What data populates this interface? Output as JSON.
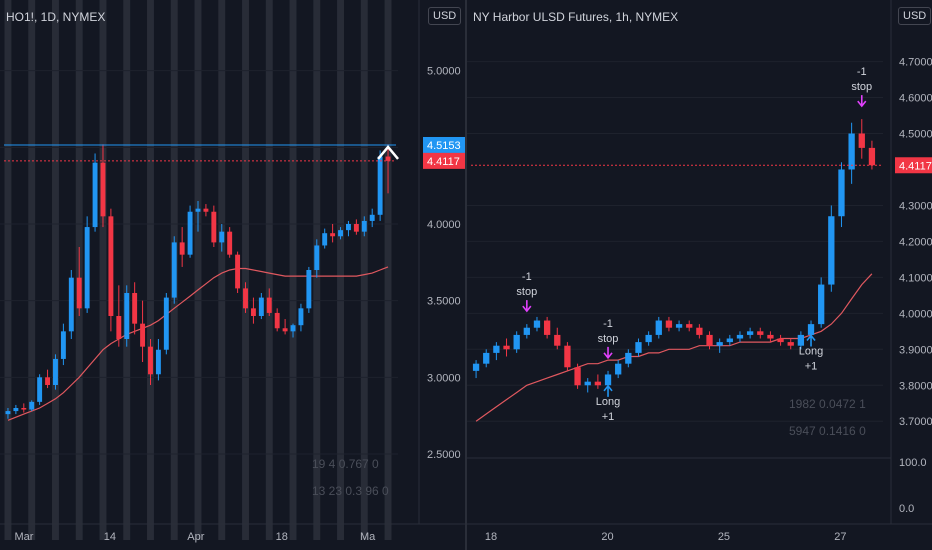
{
  "colors": {
    "up": "#2196f3",
    "down": "#f23645",
    "neutral": "#b2b5be",
    "ma": "#e0585f",
    "price_line": "#2962ff",
    "hl_line": "#42a5f5",
    "band": "#434651",
    "signal": "#e040fb"
  },
  "icons": {
    "entry_arrow": "arrow-down-magenta",
    "long_arrow": "arrow-up-blue",
    "target": "chevron-up-white"
  },
  "left": {
    "title": "HO1!, 1D, NYMEX",
    "currency": "USD",
    "price_ticks": [
      "5.0000",
      "4.5000",
      "4.0000",
      "3.5000",
      "3.0000",
      "2.5000"
    ],
    "date_ticks": [
      "Mar",
      "14",
      "Apr",
      "18",
      "Ma"
    ],
    "labels": [
      {
        "text": "4.5153",
        "color": "#2196f3"
      },
      {
        "text": "4.4117",
        "color": "#f23645"
      }
    ],
    "faint_stats": [
      "19 4 0.767 0",
      "13 23 0.3 96 0"
    ]
  },
  "right": {
    "title": "NY Harbor ULSD Futures, 1h, NYMEX",
    "currency": "USD",
    "price_ticks": [
      "4.7000",
      "4.6000",
      "4.5000",
      "4.3000",
      "4.2000",
      "4.1000",
      "4.0000",
      "3.9000",
      "3.8000",
      "3.7000"
    ],
    "osc_ticks": [
      "100.0",
      "0.0"
    ],
    "date_ticks": [
      "18",
      "20",
      "25",
      "27"
    ],
    "labels": [
      {
        "text": "4.4117",
        "color": "#f23645"
      }
    ],
    "annotations": [
      {
        "lines": [
          "-1",
          "stop"
        ]
      },
      {
        "lines": [
          "-1",
          "stop"
        ]
      },
      {
        "lines": [
          "-1",
          "stop"
        ]
      },
      {
        "lines": [
          "Long",
          "+1"
        ]
      },
      {
        "lines": [
          "Long",
          "+1"
        ]
      }
    ],
    "faint_stats": [
      "1982 0.0472 1",
      "5947 0.1416 0"
    ]
  },
  "chart_data": [
    {
      "type": "candlestick",
      "title": "HO1!, 1D, NYMEX",
      "ylim": [
        2.2,
        5.2
      ],
      "x_ticks": [
        "Mar",
        "14",
        "Apr",
        "18",
        "Ma"
      ],
      "ohlc": [
        [
          2.76,
          2.8,
          2.73,
          2.78
        ],
        [
          2.78,
          2.82,
          2.76,
          2.8
        ],
        [
          2.8,
          2.83,
          2.77,
          2.79
        ],
        [
          2.79,
          2.85,
          2.78,
          2.84
        ],
        [
          2.84,
          3.02,
          2.82,
          3.0
        ],
        [
          3.0,
          3.05,
          2.93,
          2.95
        ],
        [
          2.95,
          3.15,
          2.92,
          3.12
        ],
        [
          3.12,
          3.35,
          3.08,
          3.3
        ],
        [
          3.3,
          3.7,
          3.25,
          3.65
        ],
        [
          3.65,
          3.85,
          3.4,
          3.45
        ],
        [
          3.45,
          4.05,
          3.42,
          3.98
        ],
        [
          3.98,
          4.46,
          3.95,
          4.4
        ],
        [
          4.4,
          4.52,
          3.98,
          4.05
        ],
        [
          4.05,
          4.1,
          3.3,
          3.4
        ],
        [
          3.4,
          3.6,
          3.2,
          3.25
        ],
        [
          3.25,
          3.6,
          3.2,
          3.55
        ],
        [
          3.55,
          3.62,
          3.28,
          3.35
        ],
        [
          3.35,
          3.5,
          3.1,
          3.2
        ],
        [
          3.2,
          3.25,
          2.95,
          3.02
        ],
        [
          3.02,
          3.25,
          2.98,
          3.18
        ],
        [
          3.18,
          3.55,
          3.15,
          3.52
        ],
        [
          3.52,
          3.92,
          3.48,
          3.88
        ],
        [
          3.88,
          3.98,
          3.72,
          3.8
        ],
        [
          3.8,
          4.12,
          3.78,
          4.08
        ],
        [
          4.08,
          4.15,
          3.95,
          4.1
        ],
        [
          4.1,
          4.13,
          4.05,
          4.08
        ],
        [
          4.08,
          4.12,
          3.85,
          3.88
        ],
        [
          3.88,
          4.0,
          3.82,
          3.95
        ],
        [
          3.95,
          3.98,
          3.78,
          3.8
        ],
        [
          3.8,
          3.82,
          3.55,
          3.58
        ],
        [
          3.58,
          3.62,
          3.42,
          3.45
        ],
        [
          3.45,
          3.52,
          3.35,
          3.4
        ],
        [
          3.4,
          3.55,
          3.38,
          3.52
        ],
        [
          3.52,
          3.58,
          3.4,
          3.42
        ],
        [
          3.42,
          3.45,
          3.3,
          3.32
        ],
        [
          3.32,
          3.38,
          3.28,
          3.3
        ],
        [
          3.3,
          3.35,
          3.26,
          3.34
        ],
        [
          3.34,
          3.48,
          3.3,
          3.45
        ],
        [
          3.45,
          3.72,
          3.42,
          3.7
        ],
        [
          3.7,
          3.9,
          3.65,
          3.86
        ],
        [
          3.86,
          3.97,
          3.84,
          3.94
        ],
        [
          3.94,
          4.0,
          3.88,
          3.92
        ],
        [
          3.92,
          3.98,
          3.9,
          3.96
        ],
        [
          3.96,
          4.02,
          3.92,
          4.0
        ],
        [
          4.0,
          4.03,
          3.93,
          3.95
        ],
        [
          3.95,
          4.05,
          3.92,
          4.02
        ],
        [
          4.02,
          4.1,
          3.98,
          4.06
        ],
        [
          4.06,
          4.48,
          4.02,
          4.44
        ],
        [
          4.44,
          4.52,
          4.2,
          4.4117
        ]
      ],
      "ma": [
        2.72,
        2.74,
        2.76,
        2.78,
        2.8,
        2.83,
        2.86,
        2.9,
        2.95,
        3.0,
        3.06,
        3.12,
        3.18,
        3.22,
        3.25,
        3.28,
        3.3,
        3.32,
        3.34,
        3.37,
        3.41,
        3.45,
        3.49,
        3.53,
        3.57,
        3.61,
        3.65,
        3.68,
        3.7,
        3.71,
        3.71,
        3.7,
        3.69,
        3.68,
        3.67,
        3.66,
        3.66,
        3.66,
        3.66,
        3.66,
        3.66,
        3.66,
        3.66,
        3.66,
        3.66,
        3.67,
        3.68,
        3.7,
        3.72
      ],
      "price_lines": [
        4.5153,
        4.4117
      ]
    },
    {
      "type": "candlestick",
      "title": "NY Harbor ULSD Futures, 1h, NYMEX",
      "ylim": [
        3.62,
        4.76
      ],
      "x_ticks": [
        "18",
        "20",
        "25",
        "27"
      ],
      "ohlc": [
        [
          3.84,
          3.87,
          3.82,
          3.86
        ],
        [
          3.86,
          3.9,
          3.85,
          3.89
        ],
        [
          3.89,
          3.92,
          3.87,
          3.91
        ],
        [
          3.91,
          3.93,
          3.88,
          3.9
        ],
        [
          3.9,
          3.95,
          3.89,
          3.94
        ],
        [
          3.94,
          3.97,
          3.93,
          3.96
        ],
        [
          3.96,
          3.99,
          3.95,
          3.98
        ],
        [
          3.98,
          3.99,
          3.93,
          3.94
        ],
        [
          3.94,
          3.96,
          3.9,
          3.91
        ],
        [
          3.91,
          3.92,
          3.84,
          3.85
        ],
        [
          3.85,
          3.86,
          3.79,
          3.8
        ],
        [
          3.8,
          3.82,
          3.78,
          3.81
        ],
        [
          3.81,
          3.83,
          3.79,
          3.8
        ],
        [
          3.8,
          3.84,
          3.79,
          3.83
        ],
        [
          3.83,
          3.87,
          3.82,
          3.86
        ],
        [
          3.86,
          3.9,
          3.85,
          3.89
        ],
        [
          3.89,
          3.93,
          3.88,
          3.92
        ],
        [
          3.92,
          3.95,
          3.91,
          3.94
        ],
        [
          3.94,
          3.99,
          3.93,
          3.98
        ],
        [
          3.98,
          3.99,
          3.95,
          3.96
        ],
        [
          3.96,
          3.98,
          3.95,
          3.97
        ],
        [
          3.97,
          3.98,
          3.95,
          3.96
        ],
        [
          3.96,
          3.97,
          3.93,
          3.94
        ],
        [
          3.94,
          3.95,
          3.9,
          3.91
        ],
        [
          3.91,
          3.93,
          3.89,
          3.92
        ],
        [
          3.92,
          3.94,
          3.91,
          3.93
        ],
        [
          3.93,
          3.95,
          3.92,
          3.94
        ],
        [
          3.94,
          3.96,
          3.93,
          3.95
        ],
        [
          3.95,
          3.96,
          3.93,
          3.94
        ],
        [
          3.94,
          3.95,
          3.92,
          3.93
        ],
        [
          3.93,
          3.94,
          3.91,
          3.92
        ],
        [
          3.92,
          3.93,
          3.9,
          3.91
        ],
        [
          3.91,
          3.95,
          3.9,
          3.94
        ],
        [
          3.94,
          3.98,
          3.93,
          3.97
        ],
        [
          3.97,
          4.1,
          3.96,
          4.08
        ],
        [
          4.08,
          4.3,
          4.06,
          4.27
        ],
        [
          4.27,
          4.42,
          4.24,
          4.4
        ],
        [
          4.4,
          4.53,
          4.36,
          4.5
        ],
        [
          4.5,
          4.54,
          4.43,
          4.46
        ],
        [
          4.46,
          4.48,
          4.4,
          4.4117
        ]
      ],
      "ma": [
        3.7,
        3.72,
        3.74,
        3.76,
        3.78,
        3.8,
        3.81,
        3.82,
        3.83,
        3.84,
        3.85,
        3.86,
        3.86,
        3.87,
        3.87,
        3.88,
        3.88,
        3.89,
        3.89,
        3.9,
        3.9,
        3.9,
        3.91,
        3.91,
        3.91,
        3.91,
        3.92,
        3.92,
        3.92,
        3.92,
        3.93,
        3.93,
        3.93,
        3.94,
        3.95,
        3.97,
        4.0,
        4.04,
        4.08,
        4.11
      ],
      "price_lines": [
        4.4117
      ],
      "oscillator_ylim": [
        0,
        100
      ]
    }
  ]
}
